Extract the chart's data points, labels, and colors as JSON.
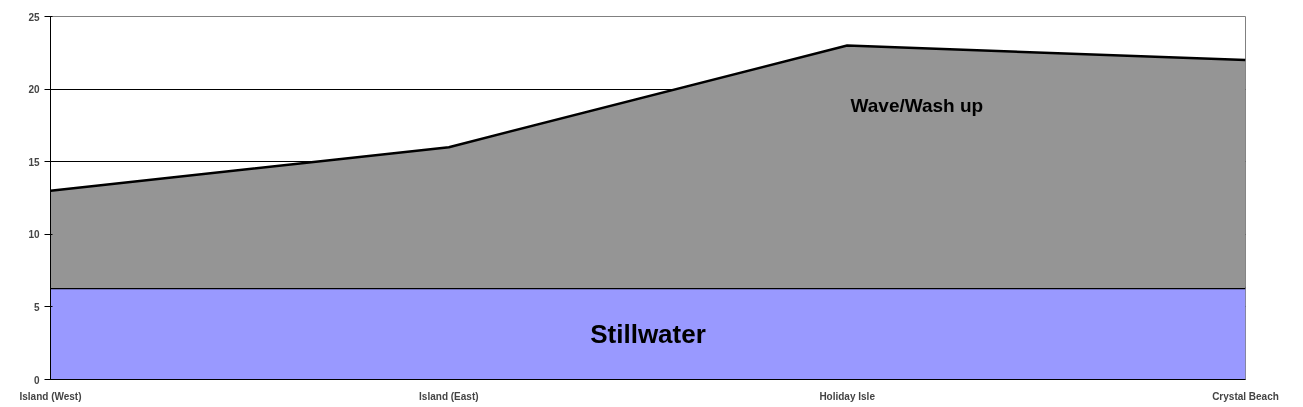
{
  "chart_data": {
    "type": "area",
    "stacked": true,
    "categories": [
      "Island (West)",
      "Island (East)",
      "Holiday Isle",
      "Crystal Beach"
    ],
    "series": [
      {
        "name": "Stillwater",
        "color": "#9999ff",
        "values": [
          6.3,
          6.3,
          6.3,
          6.3
        ]
      },
      {
        "name": "Wave/Wash up",
        "color": "#959595",
        "values": [
          6.7,
          9.7,
          16.7,
          15.7
        ]
      }
    ],
    "ylim": [
      0,
      25
    ],
    "yticks": [
      0,
      5,
      10,
      15,
      20,
      25
    ],
    "grid": "y"
  }
}
